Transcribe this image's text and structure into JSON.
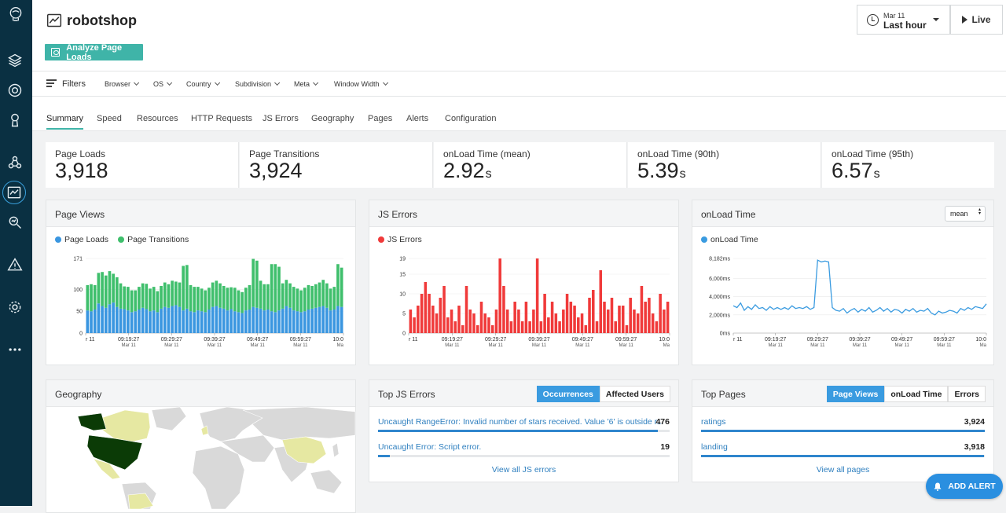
{
  "app": {
    "title": "robotshop"
  },
  "header": {
    "analyze_label": "Analyze Page Loads",
    "time_date": "Mar 11",
    "time_range": "Last hour",
    "live_label": "Live"
  },
  "filters": {
    "label": "Filters",
    "dropdowns": [
      "Browser",
      "OS",
      "Country",
      "Subdivision",
      "Meta",
      "Window Width"
    ]
  },
  "tabs": [
    "Summary",
    "Speed",
    "Resources",
    "HTTP Requests",
    "JS Errors",
    "Geography",
    "Pages",
    "Alerts",
    "Configuration"
  ],
  "kpis": [
    {
      "label": "Page Loads",
      "value": "3,918",
      "unit": ""
    },
    {
      "label": "Page Transitions",
      "value": "3,924",
      "unit": ""
    },
    {
      "label": "onLoad Time (mean)",
      "value": "2.92",
      "unit": "s"
    },
    {
      "label": "onLoad Time (90th)",
      "value": "5.39",
      "unit": "s"
    },
    {
      "label": "onLoad Time (95th)",
      "value": "6.57",
      "unit": "s"
    }
  ],
  "panels": {
    "page_views": {
      "title": "Page Views",
      "legend": [
        "Page Loads",
        "Page Transitions"
      ]
    },
    "js_errors": {
      "title": "JS Errors",
      "legend": [
        "JS Errors"
      ]
    },
    "onload": {
      "title": "onLoad Time",
      "legend": [
        "onLoad Time"
      ],
      "select_value": "mean"
    },
    "geography": {
      "title": "Geography"
    },
    "top_js_errors": {
      "title": "Top JS Errors",
      "toggle": [
        "Occurrences",
        "Affected Users"
      ],
      "rows": [
        {
          "name": "Uncaught RangeError: Invalid number of stars received. Value '6' is outside r...",
          "value": "476",
          "fraction": 0.96
        },
        {
          "name": "Uncaught Error: Script error.",
          "value": "19",
          "fraction": 0.04
        }
      ],
      "view_all": "View all JS errors"
    },
    "top_pages": {
      "title": "Top Pages",
      "toggle": [
        "Page Views",
        "onLoad Time",
        "Errors"
      ],
      "rows": [
        {
          "name": "ratings",
          "value": "3,924",
          "fraction": 1.0
        },
        {
          "name": "landing",
          "value": "3,918",
          "fraction": 0.998
        }
      ],
      "view_all": "View all pages"
    }
  },
  "add_alert_label": "ADD ALERT",
  "colors": {
    "page_loads": "#3a96e0",
    "page_transitions": "#3fbf6c",
    "js_errors": "#f03a3a",
    "onload": "#3a9be0",
    "accent": "#3fb4a8"
  },
  "chart_data": [
    {
      "type": "bar",
      "title": "Page Views",
      "stacked": true,
      "x_ticks": [
        "r 11",
        "09:19:27",
        "09:29:27",
        "09:39:27",
        "09:49:27",
        "09:59:27",
        "10:0"
      ],
      "x_tick_sub": [
        "",
        "Mar 11",
        "Mar 11",
        "Mar 11",
        "Mar 11",
        "Mar 11",
        "Ma"
      ],
      "y_ticks": [
        "0",
        "50",
        "100",
        "171"
      ],
      "ylim": [
        0,
        171
      ],
      "series": [
        {
          "name": "Page Loads",
          "values": [
            52,
            50,
            54,
            68,
            62,
            58,
            66,
            70,
            60,
            56,
            55,
            52,
            48,
            50,
            54,
            58,
            55,
            50,
            52,
            48,
            56,
            60,
            58,
            62,
            64,
            60,
            52,
            56,
            50,
            48,
            52,
            50,
            48,
            54,
            60,
            62,
            58,
            56,
            52,
            55,
            50,
            48,
            46,
            52,
            54,
            60,
            58,
            56,
            52,
            54,
            50,
            48,
            52,
            56,
            62,
            58,
            52,
            50,
            48,
            50,
            54,
            56,
            58,
            60,
            62,
            58,
            52,
            54,
            62,
            60
          ]
        },
        {
          "name": "Page Transitions",
          "values": [
            58,
            62,
            56,
            70,
            78,
            74,
            76,
            66,
            68,
            58,
            52,
            54,
            50,
            48,
            52,
            56,
            58,
            52,
            54,
            48,
            52,
            56,
            54,
            58,
            54,
            56,
            102,
            100,
            60,
            58,
            54,
            52,
            50,
            50,
            56,
            58,
            56,
            52,
            52,
            50,
            54,
            50,
            48,
            52,
            56,
            110,
            108,
            64,
            60,
            58,
            108,
            110,
            100,
            58,
            60,
            56,
            54,
            52,
            50,
            54,
            56,
            52,
            54,
            56,
            60,
            56,
            50,
            52,
            96,
            90
          ]
        }
      ]
    },
    {
      "type": "bar",
      "title": "JS Errors",
      "x_ticks": [
        "r 11",
        "09:19:27",
        "09:29:27",
        "09:39:27",
        "09:49:27",
        "09:59:27",
        "10:0"
      ],
      "x_tick_sub": [
        "",
        "Mar 11",
        "Mar 11",
        "Mar 11",
        "Mar 11",
        "Mar 11",
        "Ma"
      ],
      "y_ticks": [
        "0",
        "5",
        "10",
        "15",
        "19"
      ],
      "ylim": [
        0,
        19
      ],
      "series": [
        {
          "name": "JS Errors",
          "values": [
            6,
            4,
            7,
            10,
            13,
            10,
            7,
            5,
            9,
            12,
            4,
            6,
            3,
            7,
            2,
            12,
            6,
            5,
            2,
            8,
            5,
            4,
            2,
            6,
            19,
            12,
            6,
            3,
            8,
            6,
            3,
            8,
            3,
            6,
            19,
            3,
            10,
            4,
            8,
            5,
            3,
            6,
            10,
            8,
            7,
            4,
            5,
            2,
            9,
            11,
            3,
            16,
            8,
            6,
            9,
            3,
            7,
            7,
            2,
            9,
            6,
            5,
            12,
            8,
            9,
            5,
            3,
            10,
            6,
            8
          ]
        }
      ]
    },
    {
      "type": "line",
      "title": "onLoad Time",
      "x_ticks": [
        "r 11",
        "09:19:27",
        "09:29:27",
        "09:39:27",
        "09:49:27",
        "09:59:27",
        "10:0"
      ],
      "x_tick_sub": [
        "",
        "Mar 11",
        "Mar 11",
        "Mar 11",
        "Mar 11",
        "Mar 11",
        "Ma"
      ],
      "y_ticks": [
        "0ms",
        "2,000ms",
        "4,000ms",
        "6,000ms",
        "8,182ms"
      ],
      "ylim": [
        0,
        8182
      ],
      "series": [
        {
          "name": "onLoad Time",
          "values": [
            3000,
            2800,
            3300,
            2500,
            2900,
            2600,
            3100,
            2700,
            2800,
            2500,
            2900,
            2600,
            2800,
            2600,
            2800,
            2600,
            3000,
            2700,
            2800,
            2700,
            2900,
            2600,
            2800,
            8000,
            7800,
            7900,
            7800,
            2800,
            2500,
            2400,
            2700,
            2200,
            2500,
            2700,
            2300,
            2600,
            2400,
            2800,
            2300,
            2500,
            2800,
            2400,
            2700,
            2300,
            2600,
            2500,
            2200,
            2600,
            2400,
            2700,
            2300,
            2500,
            2400,
            2700,
            2200,
            2000,
            2400,
            2200,
            2300,
            2500,
            2400,
            2200,
            2700,
            2500,
            2800,
            2600,
            2900,
            2800,
            2700,
            3200
          ]
        }
      ]
    }
  ]
}
